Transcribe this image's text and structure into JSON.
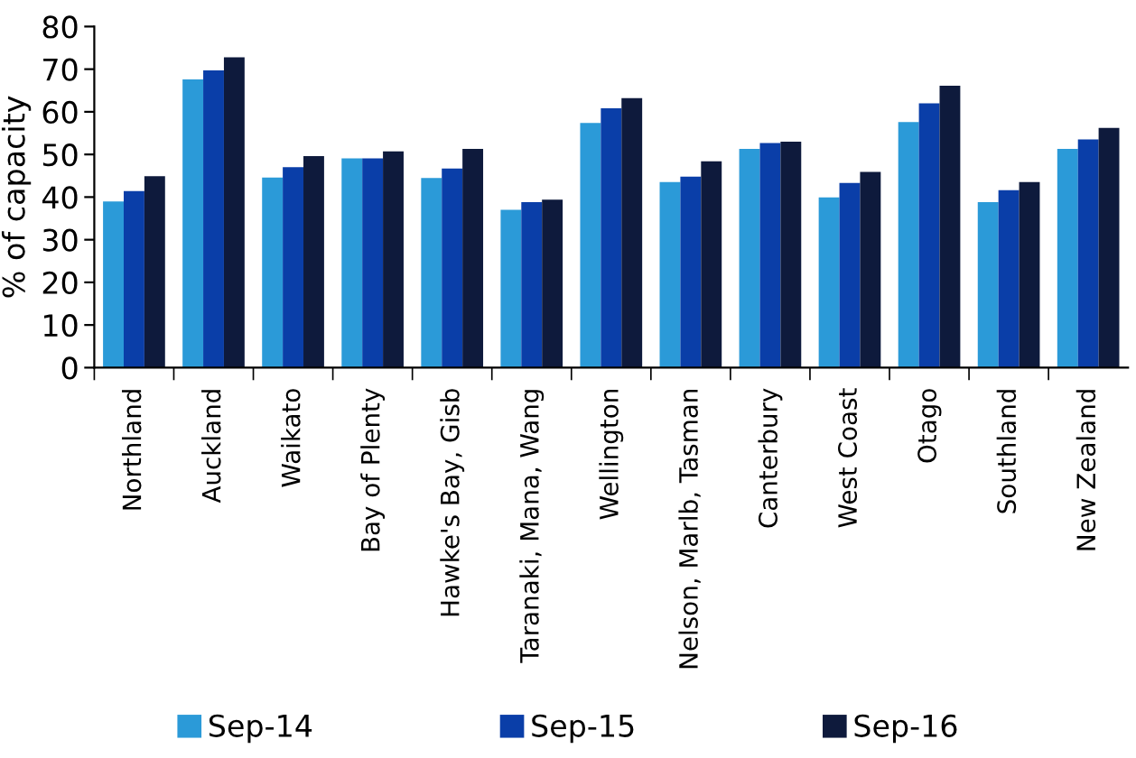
{
  "chart_data": {
    "type": "bar",
    "ylabel": "% of capacity",
    "categories": [
      "Northland",
      "Auckland",
      "Waikato",
      "Bay of Plenty",
      "Hawke's Bay, Gisb",
      "Taranaki, Mana, Wang",
      "Wellington",
      "Nelson, Marlb, Tasman",
      "Canterbury",
      "West Coast",
      "Otago",
      "Southland",
      "New Zealand"
    ],
    "series": [
      {
        "name": "Sep-14",
        "color": "#2b9ad8",
        "values": [
          39,
          67.6,
          44.6,
          49.1,
          44.5,
          37,
          57.4,
          43.5,
          51.3,
          39.9,
          57.6,
          38.8,
          51.3
        ]
      },
      {
        "name": "Sep-15",
        "color": "#0a3ea8",
        "values": [
          41.4,
          69.7,
          47,
          49.1,
          46.7,
          38.8,
          60.8,
          44.8,
          52.7,
          43.3,
          62,
          41.6,
          53.5
        ]
      },
      {
        "name": "Sep-16",
        "color": "#0e1a3c",
        "values": [
          44.9,
          72.8,
          49.6,
          50.7,
          51.3,
          39.4,
          63.2,
          48.4,
          53,
          45.9,
          66.1,
          43.5,
          56.2
        ]
      }
    ],
    "ylim": [
      0,
      80
    ],
    "yticks": [
      0,
      10,
      20,
      30,
      40,
      50,
      60,
      70,
      80
    ],
    "grid": false,
    "legend": "bottom"
  }
}
